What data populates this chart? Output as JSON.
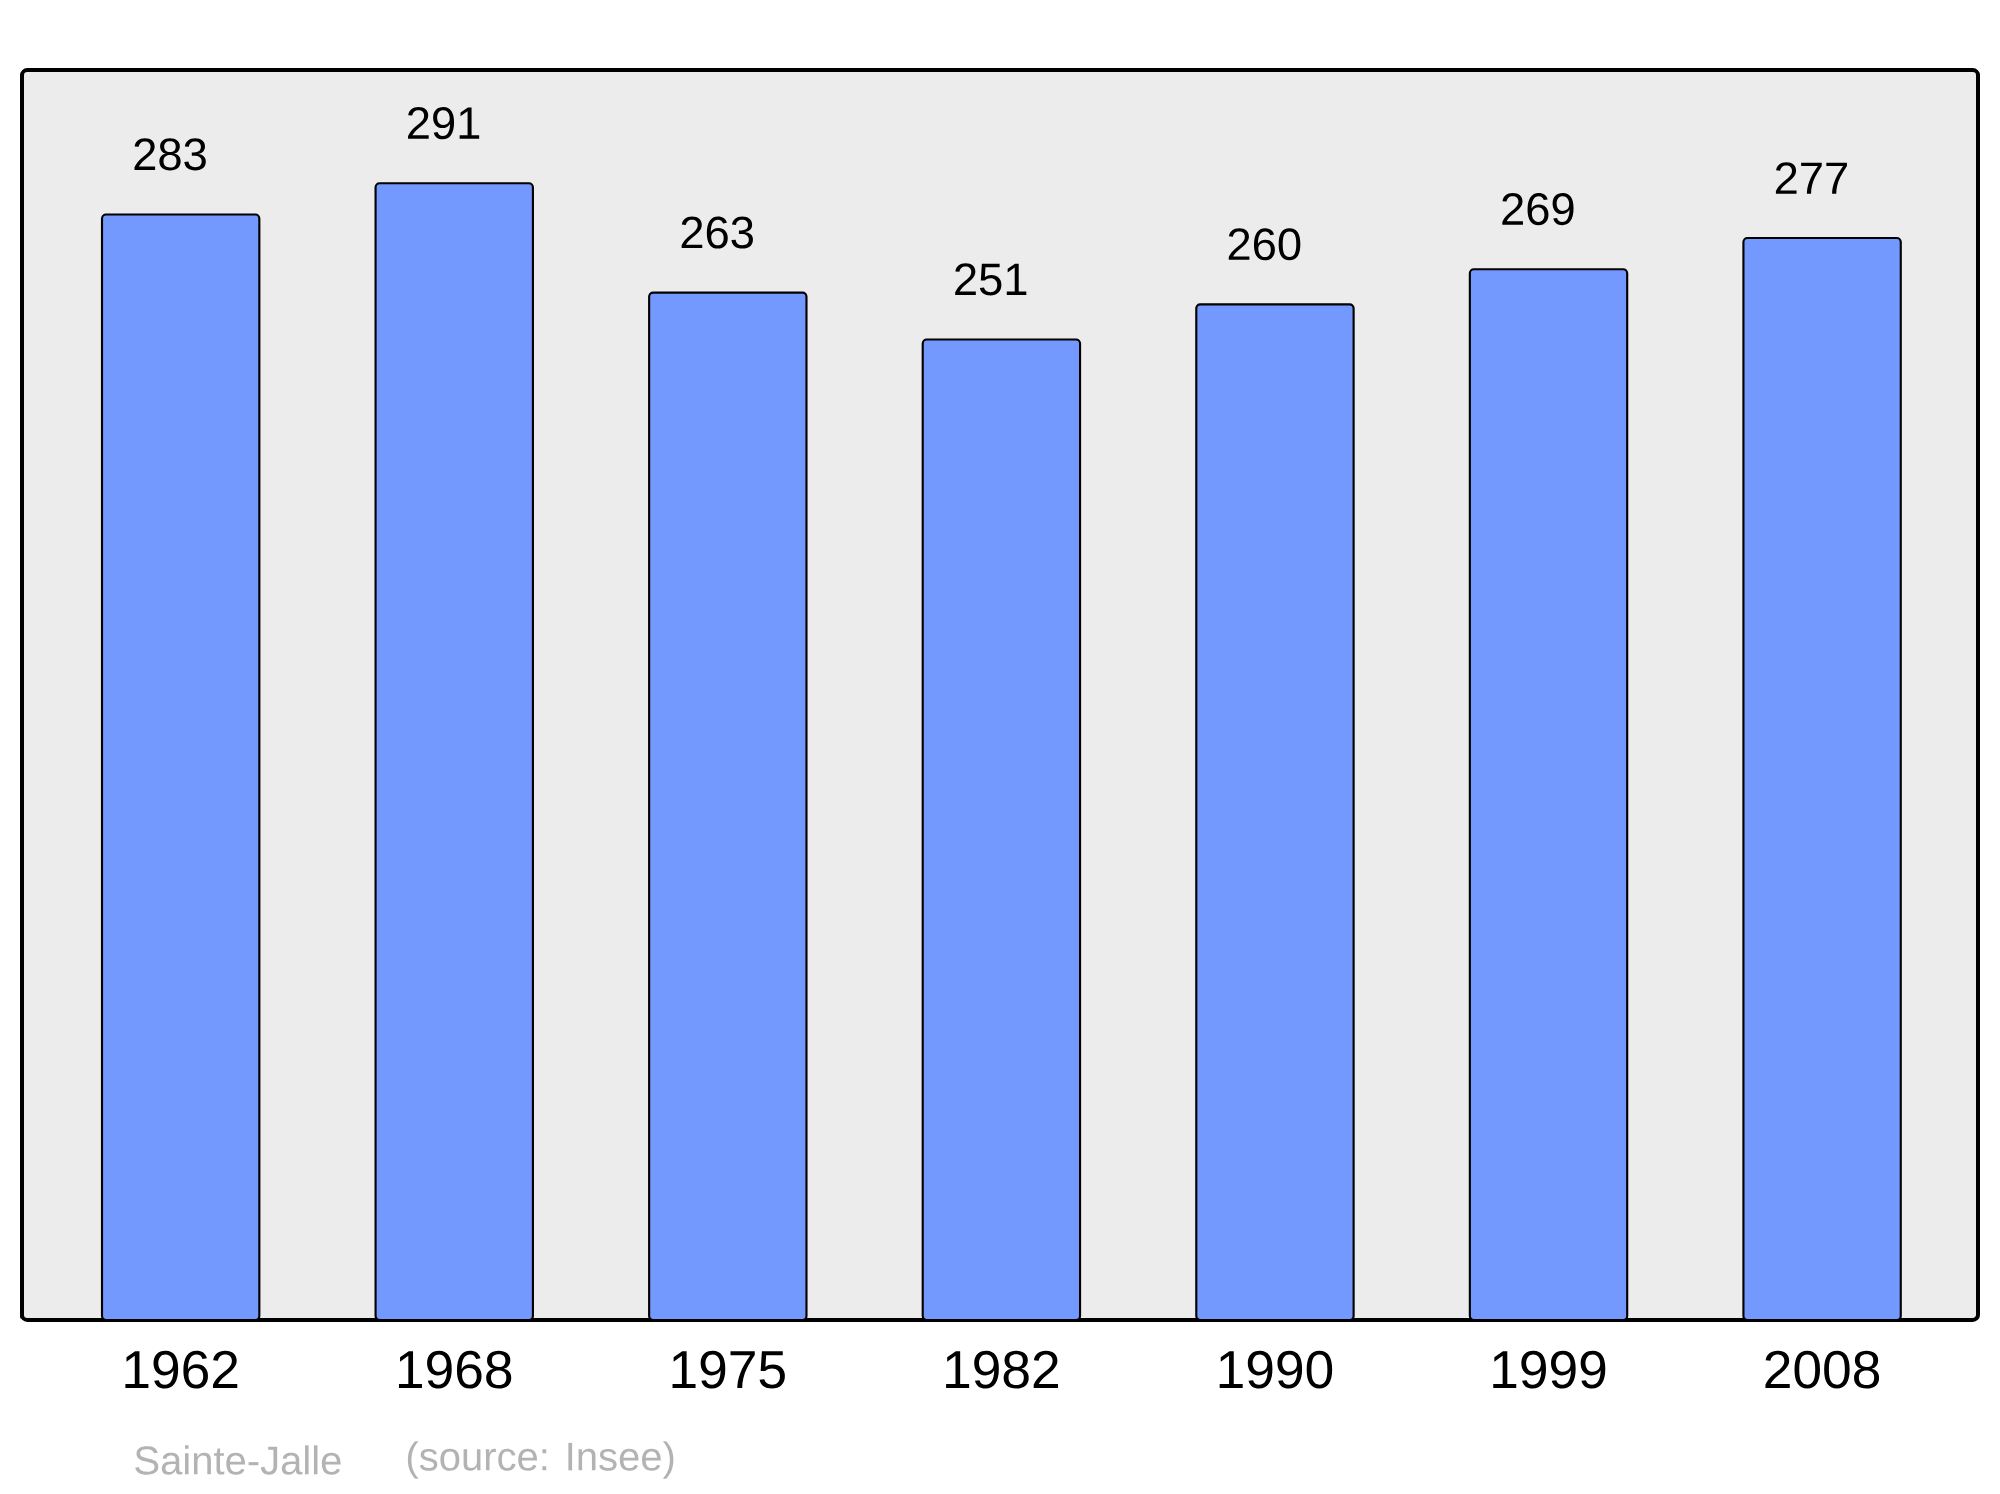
{
  "chart_data": {
    "type": "bar",
    "categories": [
      "1962",
      "1968",
      "1975",
      "1982",
      "1990",
      "1999",
      "2008"
    ],
    "values": [
      283,
      291,
      263,
      251,
      260,
      269,
      277
    ],
    "color": "#7399ff",
    "ylim": [
      0,
      320
    ],
    "data_labels": true,
    "annotations": [
      "Sainte-Jalle",
      "(source: Insee)"
    ]
  }
}
